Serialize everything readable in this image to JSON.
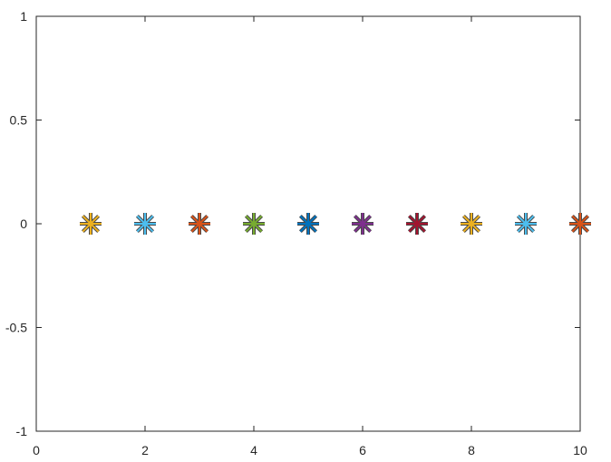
{
  "chart_data": {
    "type": "scatter",
    "title": "",
    "xlabel": "",
    "ylabel": "",
    "xlim": [
      0,
      10
    ],
    "ylim": [
      -1,
      1
    ],
    "x_ticks": [
      0,
      2,
      4,
      6,
      8,
      10
    ],
    "x_tick_labels": [
      "0",
      "2",
      "4",
      "6",
      "8",
      "10"
    ],
    "y_ticks": [
      1,
      0.5,
      0,
      -0.5,
      -1
    ],
    "y_tick_labels": [
      "1",
      "0.5",
      "0",
      "-0.5",
      "-1"
    ],
    "grid": false,
    "marker": "asterisk",
    "points": [
      {
        "x": 1,
        "y": 0,
        "color": "#EDB120"
      },
      {
        "x": 2,
        "y": 0,
        "color": "#4DBEEE"
      },
      {
        "x": 3,
        "y": 0,
        "color": "#D95319"
      },
      {
        "x": 4,
        "y": 0,
        "color": "#77AC30"
      },
      {
        "x": 5,
        "y": 0,
        "color": "#0072BD"
      },
      {
        "x": 6,
        "y": 0,
        "color": "#7E2F8E"
      },
      {
        "x": 7,
        "y": 0,
        "color": "#A2142F"
      },
      {
        "x": 8,
        "y": 0,
        "color": "#EDB120"
      },
      {
        "x": 9,
        "y": 0,
        "color": "#4DBEEE"
      },
      {
        "x": 10,
        "y": 0,
        "color": "#D95319"
      }
    ]
  }
}
